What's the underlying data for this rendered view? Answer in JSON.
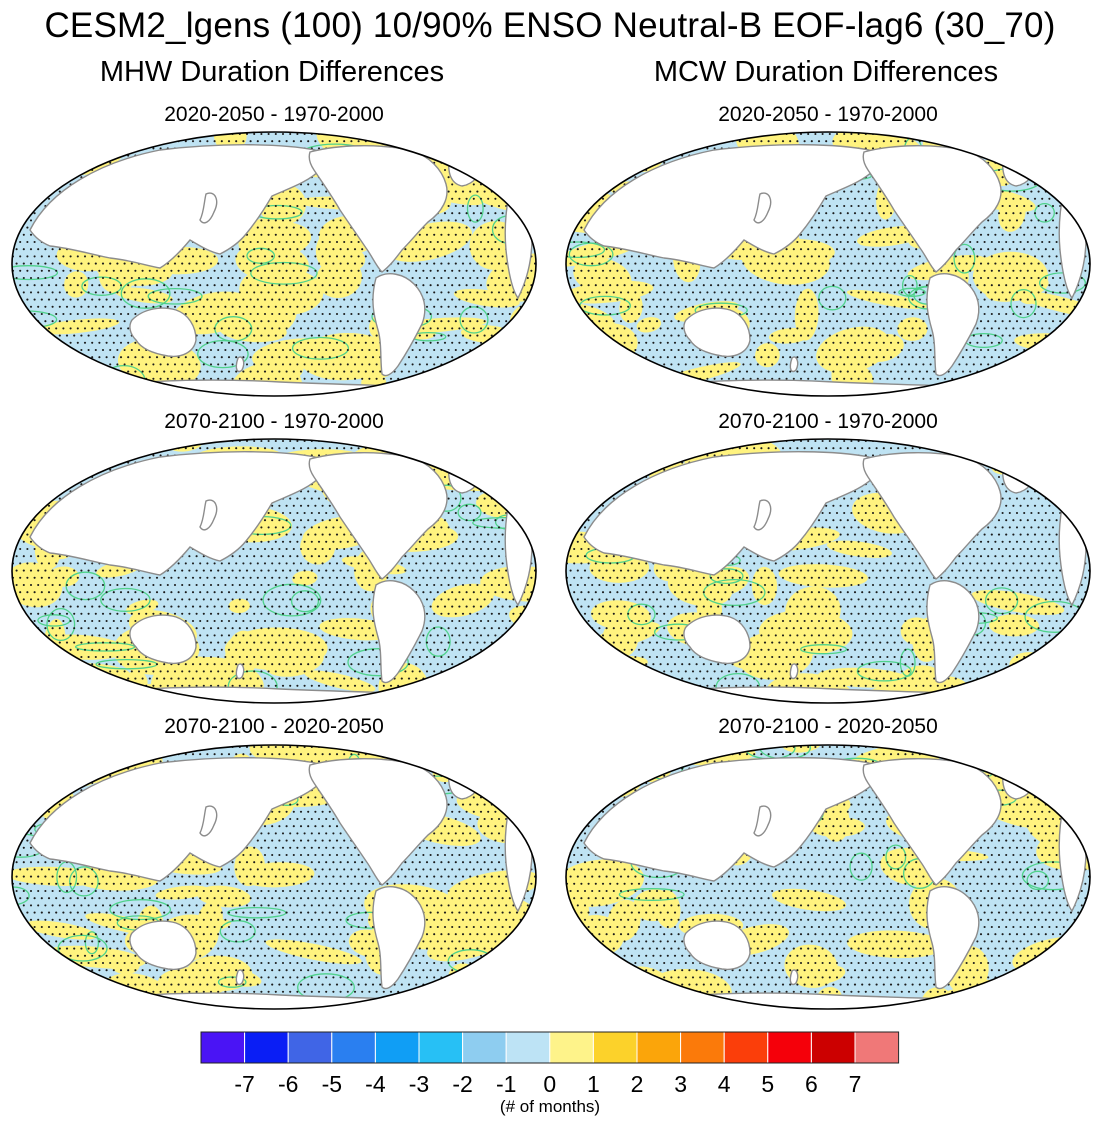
{
  "figure": {
    "title": "CESM2_lgens (100) 10/90% ENSO Neutral-B EOF-lag6 (30_70)",
    "columns": [
      "MHW Duration Differences",
      "MCW Duration Differences"
    ],
    "panels": [
      {
        "column": 0,
        "row": 0,
        "subtitle": "2020-2050 - 1970-2000",
        "warm_fraction": 0.45,
        "seed": 11
      },
      {
        "column": 1,
        "row": 0,
        "subtitle": "2020-2050 - 1970-2000",
        "warm_fraction": 0.42,
        "seed": 23
      },
      {
        "column": 0,
        "row": 1,
        "subtitle": "2070-2100 - 1970-2000",
        "warm_fraction": 0.4,
        "seed": 37
      },
      {
        "column": 1,
        "row": 1,
        "subtitle": "2070-2100 - 1970-2000",
        "warm_fraction": 0.36,
        "seed": 41
      },
      {
        "column": 0,
        "row": 2,
        "subtitle": "2070-2100 - 2020-2050",
        "warm_fraction": 0.44,
        "seed": 53
      },
      {
        "column": 1,
        "row": 2,
        "subtitle": "2070-2100 - 2020-2050",
        "warm_fraction": 0.43,
        "seed": 67
      }
    ]
  },
  "colorbar": {
    "labels": [
      "-7",
      "-6",
      "-5",
      "-4",
      "-3",
      "-2",
      "-1",
      "0",
      "1",
      "2",
      "3",
      "4",
      "5",
      "6",
      "7"
    ],
    "colors": [
      "#4a14f5",
      "#0a1ef5",
      "#4065e6",
      "#2a7ff0",
      "#109ef5",
      "#27c0f5",
      "#8ecdf0",
      "#bde3f5",
      "#fef38a",
      "#fcd22a",
      "#fba50a",
      "#fb7a0a",
      "#fb3e0a",
      "#f5000a",
      "#cc0000",
      "#f07878"
    ],
    "units": "(# of months)"
  },
  "colors": {
    "warm": "#fff37f",
    "cool": "#bfe3f3",
    "contour": "#4fd18a",
    "coast": "#8c8c8c",
    "stipple": "#1a1a1a"
  }
}
